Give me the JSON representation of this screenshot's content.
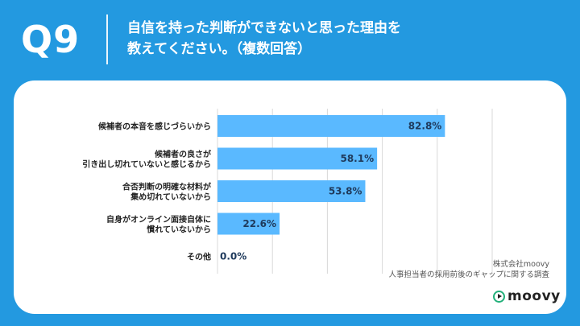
{
  "header": {
    "question": "Q9",
    "title_line1": "自信を持った判断ができないと思った理由を",
    "title_line2": "教えてください。（複数回答）"
  },
  "chart_data": {
    "type": "bar",
    "orientation": "horizontal",
    "title": "",
    "xlabel": "",
    "ylabel": "",
    "categories": [
      [
        "候補者の本音を感じづらいから"
      ],
      [
        "候補者の良さが",
        "引き出し切れていないと感じるから"
      ],
      [
        "合否判断の明確な材料が",
        "集め切れていないから"
      ],
      [
        "自身がオンライン面接自体に",
        "慣れていないから"
      ],
      [
        "その他"
      ]
    ],
    "values": [
      82.8,
      58.1,
      53.8,
      22.6,
      0.0
    ],
    "value_labels": [
      "82.8%",
      "58.1%",
      "53.8%",
      "22.6%",
      "0.0%"
    ],
    "xlim": [
      0,
      100
    ],
    "grid": true,
    "bar_color": "#5ab9ff"
  },
  "source": {
    "line1": "株式会社moovy",
    "line2": "人事担当者の採用前後のギャップに関する調査"
  },
  "logo": {
    "text": "moovy",
    "icon": "play-circle-icon"
  }
}
